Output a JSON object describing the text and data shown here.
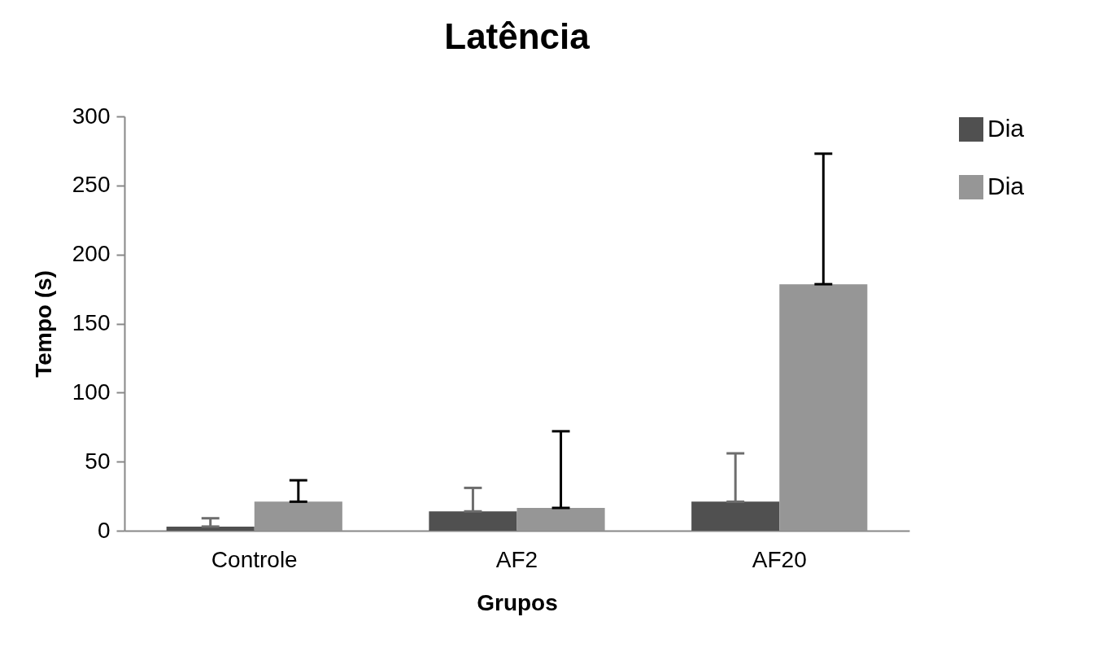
{
  "chart_data": {
    "type": "bar",
    "title": "Latência",
    "xlabel": "Grupos",
    "ylabel": "Tempo (s)",
    "categories": [
      "Controle",
      "AF2",
      "AF20"
    ],
    "series": [
      {
        "name": "Dia",
        "color": "#505050",
        "values": [
          3,
          14,
          21
        ],
        "errors": [
          [
            3,
            9
          ],
          [
            14,
            31
          ],
          [
            21,
            56
          ]
        ]
      },
      {
        "name": "Dia",
        "color": "#969696",
        "values": [
          21,
          16.5,
          178.5
        ],
        "errors": [
          [
            21,
            36.5
          ],
          [
            16.5,
            72
          ],
          [
            178.5,
            273
          ]
        ]
      }
    ],
    "ylim": [
      0,
      300
    ],
    "yticks": [
      0,
      50,
      100,
      150,
      200,
      250,
      300
    ],
    "grid": false,
    "legend": "right"
  }
}
